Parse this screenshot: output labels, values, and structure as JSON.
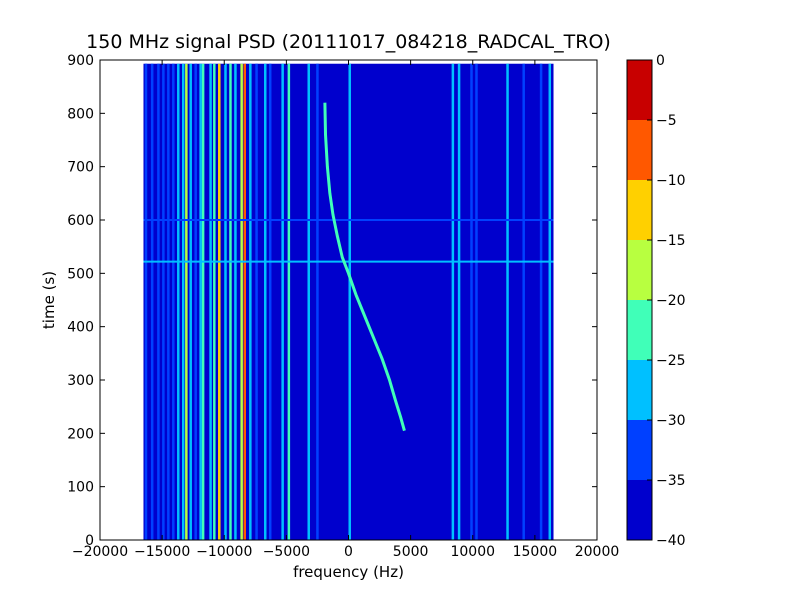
{
  "chart_data": {
    "type": "heatmap",
    "title": "150 MHz signal PSD (20111017_084218_RADCAL_TRO)",
    "xlabel": "frequency (Hz)",
    "ylabel": "time (s)",
    "xlim": [
      -20000,
      20000
    ],
    "ylim": [
      0,
      900
    ],
    "x_ticks": [
      -20000,
      -15000,
      -10000,
      -5000,
      0,
      5000,
      10000,
      15000,
      20000
    ],
    "y_ticks": [
      0,
      100,
      200,
      300,
      400,
      500,
      600,
      700,
      800,
      900
    ],
    "data_extent": {
      "x": [
        -16500,
        16500
      ],
      "y": [
        0,
        893
      ]
    },
    "background_level_db": -35,
    "colorbar": {
      "range": [
        -40,
        0
      ],
      "ticks": [
        0,
        -5,
        -10,
        -15,
        -20,
        -25,
        -30,
        -35,
        -40
      ],
      "bands": [
        {
          "from": -40,
          "to": -35,
          "color": "#0000cd"
        },
        {
          "from": -35,
          "to": -30,
          "color": "#0040ff"
        },
        {
          "from": -30,
          "to": -25,
          "color": "#00c0ff"
        },
        {
          "from": -25,
          "to": -20,
          "color": "#40ffb8"
        },
        {
          "from": -20,
          "to": -15,
          "color": "#b8ff40"
        },
        {
          "from": -15,
          "to": -10,
          "color": "#ffd000"
        },
        {
          "from": -10,
          "to": -5,
          "color": "#ff5800"
        },
        {
          "from": -5,
          "to": 0,
          "color": "#c80000"
        }
      ]
    },
    "vertical_lines": [
      {
        "freq": -16300,
        "level_db": -30
      },
      {
        "freq": -15800,
        "level_db": -30
      },
      {
        "freq": -15300,
        "level_db": -30
      },
      {
        "freq": -14900,
        "level_db": -30
      },
      {
        "freq": -14500,
        "level_db": -30
      },
      {
        "freq": -14100,
        "level_db": -30
      },
      {
        "freq": -13700,
        "level_db": -25
      },
      {
        "freq": -13300,
        "level_db": -25
      },
      {
        "freq": -13050,
        "level_db": -15
      },
      {
        "freq": -12700,
        "level_db": -25
      },
      {
        "freq": -12300,
        "level_db": -30
      },
      {
        "freq": -11900,
        "level_db": -25
      },
      {
        "freq": -11700,
        "level_db": -20
      },
      {
        "freq": -11100,
        "level_db": -25
      },
      {
        "freq": -10800,
        "level_db": -20
      },
      {
        "freq": -10400,
        "level_db": -10
      },
      {
        "freq": -9900,
        "level_db": -25
      },
      {
        "freq": -9500,
        "level_db": -20
      },
      {
        "freq": -9100,
        "level_db": -25
      },
      {
        "freq": -8600,
        "level_db": -15
      },
      {
        "freq": -8350,
        "level_db": -5
      },
      {
        "freq": -7900,
        "level_db": -25
      },
      {
        "freq": -7400,
        "level_db": -30
      },
      {
        "freq": -6700,
        "level_db": -25
      },
      {
        "freq": -6300,
        "level_db": -30
      },
      {
        "freq": -5300,
        "level_db": -25
      },
      {
        "freq": -4800,
        "level_db": -20
      },
      {
        "freq": -3200,
        "level_db": -25
      },
      {
        "freq": -2500,
        "level_db": -30
      },
      {
        "freq": 100,
        "level_db": -25
      },
      {
        "freq": 8400,
        "level_db": -25
      },
      {
        "freq": 8900,
        "level_db": -25
      },
      {
        "freq": 9900,
        "level_db": -30
      },
      {
        "freq": 10300,
        "level_db": -30
      },
      {
        "freq": 12800,
        "level_db": -25
      },
      {
        "freq": 14100,
        "level_db": -30
      },
      {
        "freq": 15500,
        "level_db": -30
      },
      {
        "freq": 16200,
        "level_db": -25
      }
    ],
    "horizontal_lines": [
      {
        "time": 522,
        "level_db": -25
      },
      {
        "time": 600,
        "level_db": -30
      }
    ],
    "signal_track": {
      "level_db": -20,
      "points": [
        [
          -1900,
          820
        ],
        [
          -1850,
          760
        ],
        [
          -1700,
          700
        ],
        [
          -1500,
          650
        ],
        [
          -1250,
          610
        ],
        [
          -900,
          570
        ],
        [
          -500,
          530
        ],
        [
          0,
          500
        ],
        [
          600,
          460
        ],
        [
          1300,
          420
        ],
        [
          2000,
          380
        ],
        [
          2700,
          340
        ],
        [
          3300,
          300
        ],
        [
          3800,
          260
        ],
        [
          4200,
          230
        ],
        [
          4500,
          205
        ]
      ]
    }
  }
}
